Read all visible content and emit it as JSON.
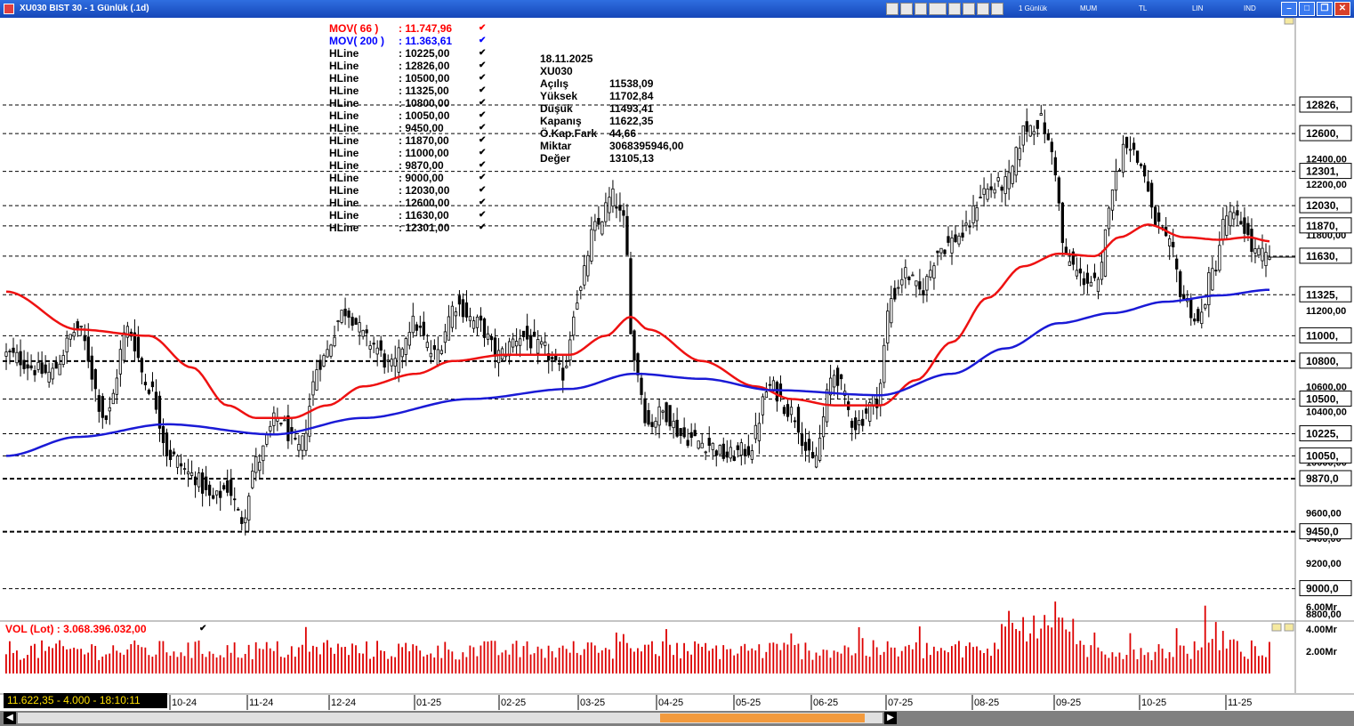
{
  "window": {
    "title": "XU030 BIST 30 - 1 Günlük (.1d)",
    "toolbar_labels": [
      "1 Günlük",
      "MUM",
      "TL",
      "LIN",
      "IND"
    ]
  },
  "legend": [
    {
      "name": "MOV( 66 )",
      "value": ": 11.747,96",
      "color": "#ff0000"
    },
    {
      "name": "MOV( 200 )",
      "value": ": 11.363,61",
      "color": "#0000ff"
    },
    {
      "name": "HLine",
      "value": ": 10225,00",
      "color": "#000000"
    },
    {
      "name": "HLine",
      "value": ": 12826,00",
      "color": "#000000"
    },
    {
      "name": "HLine",
      "value": ": 10500,00",
      "color": "#000000"
    },
    {
      "name": "HLine",
      "value": ": 11325,00",
      "color": "#000000"
    },
    {
      "name": "HLine",
      "value": ": 10800,00",
      "color": "#000000"
    },
    {
      "name": "HLine",
      "value": ": 10050,00",
      "color": "#000000"
    },
    {
      "name": "HLine",
      "value": ": 9450,00",
      "color": "#000000"
    },
    {
      "name": "HLine",
      "value": ": 11870,00",
      "color": "#000000"
    },
    {
      "name": "HLine",
      "value": ": 11000,00",
      "color": "#000000"
    },
    {
      "name": "HLine",
      "value": ": 9870,00",
      "color": "#000000"
    },
    {
      "name": "HLine",
      "value": ": 9000,00",
      "color": "#000000"
    },
    {
      "name": "HLine",
      "value": ": 12030,00",
      "color": "#000000"
    },
    {
      "name": "HLine",
      "value": ": 12600,00",
      "color": "#000000"
    },
    {
      "name": "HLine",
      "value": ": 11630,00",
      "color": "#000000"
    },
    {
      "name": "HLine",
      "value": ": 12301,00",
      "color": "#000000"
    }
  ],
  "check_mark": "✔",
  "info": [
    {
      "label": "18.11.2025",
      "value": ""
    },
    {
      "label": "XU030",
      "value": ""
    },
    {
      "label": "Açılış",
      "value": "11538,09"
    },
    {
      "label": "Yüksek",
      "value": "11702,84"
    },
    {
      "label": "Düşük",
      "value": "11493,41"
    },
    {
      "label": "Kapanış",
      "value": "11622,35"
    },
    {
      "label": "Ö.Kap.Fark",
      "value": "44,66"
    },
    {
      "label": "Miktar",
      "value": "3068395946,00"
    },
    {
      "label": "Değer",
      "value": "13105,13"
    }
  ],
  "volume": {
    "label": "VOL (Lot)   : 3.068.396.032,00",
    "axis_ticks": [
      {
        "label": "6.00Mr",
        "value": 6
      },
      {
        "label": "4.00Mr",
        "value": 4
      },
      {
        "label": "2.00Mr",
        "value": 2
      }
    ]
  },
  "status": "11.622,35 - 4.000 - 18:10:11",
  "colors": {
    "ma66": "#ee1111",
    "ma200": "#1a1ad6",
    "candle": "#000000",
    "volume": "#dd0000",
    "hline": "#000000"
  },
  "chart_data": {
    "type": "candlestick",
    "symbol": "XU030",
    "ylim": [
      8800,
      13050
    ],
    "y_ticks": [
      {
        "label": "12400,00",
        "value": 12400
      },
      {
        "label": "12200,00",
        "value": 12200
      },
      {
        "label": "11800,00",
        "value": 11800
      },
      {
        "label": "11200,00",
        "value": 11200
      },
      {
        "label": "10600,00",
        "value": 10600
      },
      {
        "label": "10400,00",
        "value": 10400
      },
      {
        "label": "10000,00",
        "value": 10000
      },
      {
        "label": "9600,00",
        "value": 9600
      },
      {
        "label": "9400,00",
        "value": 9400
      },
      {
        "label": "9200,00",
        "value": 9200
      },
      {
        "label": "8800,00",
        "value": 8800
      }
    ],
    "hlines": [
      {
        "label": "12826,",
        "value": 12826,
        "style": "dashed"
      },
      {
        "label": "12600,",
        "value": 12600,
        "style": "dashed"
      },
      {
        "label": "12301,",
        "value": 12301,
        "style": "dashed"
      },
      {
        "label": "12030,",
        "value": 12030,
        "style": "dashed"
      },
      {
        "label": "11870,",
        "value": 11870,
        "style": "dashed"
      },
      {
        "label": "11630,",
        "value": 11630,
        "style": "dashed"
      },
      {
        "label": "11325,",
        "value": 11325,
        "style": "dashed"
      },
      {
        "label": "11000,",
        "value": 11000,
        "style": "dashed"
      },
      {
        "label": "10800,",
        "value": 10800,
        "style": "bold"
      },
      {
        "label": "10500,",
        "value": 10500,
        "style": "dashed"
      },
      {
        "label": "10225,",
        "value": 10225,
        "style": "dashed"
      },
      {
        "label": "10050,",
        "value": 10050,
        "style": "dashed"
      },
      {
        "label": "9870,0",
        "value": 9870,
        "style": "bold"
      },
      {
        "label": "9450,0",
        "value": 9450,
        "style": "bold"
      },
      {
        "label": "9000,0",
        "value": 9000,
        "style": "dashed"
      }
    ],
    "x_labels": [
      "10-24",
      "11-24",
      "12-24",
      "01-25",
      "02-25",
      "03-25",
      "04-25",
      "05-25",
      "06-25",
      "07-25",
      "08-25",
      "09-25",
      "10-25",
      "11-25"
    ],
    "close_anchors": [
      {
        "bar": 0,
        "close": 10850
      },
      {
        "bar": 12,
        "close": 10700
      },
      {
        "bar": 20,
        "close": 11050
      },
      {
        "bar": 28,
        "close": 10350
      },
      {
        "bar": 34,
        "close": 11050
      },
      {
        "bar": 40,
        "close": 10600
      },
      {
        "bar": 46,
        "close": 10050
      },
      {
        "bar": 52,
        "close": 9900
      },
      {
        "bar": 58,
        "close": 9700
      },
      {
        "bar": 62,
        "close": 9800
      },
      {
        "bar": 66,
        "close": 9550
      },
      {
        "bar": 70,
        "close": 10000
      },
      {
        "bar": 76,
        "close": 10350
      },
      {
        "bar": 82,
        "close": 10100
      },
      {
        "bar": 88,
        "close": 10800
      },
      {
        "bar": 95,
        "close": 11200
      },
      {
        "bar": 102,
        "close": 10950
      },
      {
        "bar": 108,
        "close": 10750
      },
      {
        "bar": 114,
        "close": 11100
      },
      {
        "bar": 120,
        "close": 10850
      },
      {
        "bar": 126,
        "close": 11250
      },
      {
        "bar": 132,
        "close": 11100
      },
      {
        "bar": 138,
        "close": 10850
      },
      {
        "bar": 144,
        "close": 11000
      },
      {
        "bar": 150,
        "close": 10900
      },
      {
        "bar": 156,
        "close": 10700
      },
      {
        "bar": 160,
        "close": 11300
      },
      {
        "bar": 165,
        "close": 11850
      },
      {
        "bar": 170,
        "close": 12100
      },
      {
        "bar": 173,
        "close": 11900
      },
      {
        "bar": 176,
        "close": 10800
      },
      {
        "bar": 180,
        "close": 10300
      },
      {
        "bar": 184,
        "close": 10400
      },
      {
        "bar": 190,
        "close": 10200
      },
      {
        "bar": 196,
        "close": 10150
      },
      {
        "bar": 202,
        "close": 10050
      },
      {
        "bar": 208,
        "close": 10100
      },
      {
        "bar": 214,
        "close": 10600
      },
      {
        "bar": 220,
        "close": 10400
      },
      {
        "bar": 226,
        "close": 10000
      },
      {
        "bar": 232,
        "close": 10700
      },
      {
        "bar": 238,
        "close": 10300
      },
      {
        "bar": 244,
        "close": 10500
      },
      {
        "bar": 248,
        "close": 11300
      },
      {
        "bar": 252,
        "close": 11500
      },
      {
        "bar": 256,
        "close": 11350
      },
      {
        "bar": 262,
        "close": 11700
      },
      {
        "bar": 268,
        "close": 11800
      },
      {
        "bar": 274,
        "close": 12150
      },
      {
        "bar": 280,
        "close": 12200
      },
      {
        "bar": 286,
        "close": 12650
      },
      {
        "bar": 290,
        "close": 12700
      },
      {
        "bar": 293,
        "close": 12450
      },
      {
        "bar": 297,
        "close": 11600
      },
      {
        "bar": 302,
        "close": 11450
      },
      {
        "bar": 306,
        "close": 11400
      },
      {
        "bar": 310,
        "close": 12200
      },
      {
        "bar": 314,
        "close": 12550
      },
      {
        "bar": 318,
        "close": 12350
      },
      {
        "bar": 322,
        "close": 11900
      },
      {
        "bar": 326,
        "close": 11700
      },
      {
        "bar": 330,
        "close": 11300
      },
      {
        "bar": 334,
        "close": 11100
      },
      {
        "bar": 338,
        "close": 11500
      },
      {
        "bar": 342,
        "close": 11950
      },
      {
        "bar": 346,
        "close": 11900
      },
      {
        "bar": 350,
        "close": 11650
      },
      {
        "bar": 354,
        "close": 11622
      }
    ],
    "ma66_anchors": [
      {
        "bar": 0,
        "value": 11350
      },
      {
        "bar": 20,
        "value": 11050
      },
      {
        "bar": 40,
        "value": 11000
      },
      {
        "bar": 52,
        "value": 10750
      },
      {
        "bar": 62,
        "value": 10450
      },
      {
        "bar": 70,
        "value": 10350
      },
      {
        "bar": 80,
        "value": 10350
      },
      {
        "bar": 90,
        "value": 10450
      },
      {
        "bar": 100,
        "value": 10600
      },
      {
        "bar": 115,
        "value": 10700
      },
      {
        "bar": 125,
        "value": 10800
      },
      {
        "bar": 140,
        "value": 10850
      },
      {
        "bar": 158,
        "value": 10850
      },
      {
        "bar": 168,
        "value": 11000
      },
      {
        "bar": 175,
        "value": 11150
      },
      {
        "bar": 180,
        "value": 11050
      },
      {
        "bar": 195,
        "value": 10800
      },
      {
        "bar": 210,
        "value": 10600
      },
      {
        "bar": 220,
        "value": 10500
      },
      {
        "bar": 232,
        "value": 10450
      },
      {
        "bar": 245,
        "value": 10450
      },
      {
        "bar": 255,
        "value": 10650
      },
      {
        "bar": 265,
        "value": 10950
      },
      {
        "bar": 275,
        "value": 11300
      },
      {
        "bar": 285,
        "value": 11550
      },
      {
        "bar": 295,
        "value": 11650
      },
      {
        "bar": 305,
        "value": 11630
      },
      {
        "bar": 312,
        "value": 11780
      },
      {
        "bar": 320,
        "value": 11880
      },
      {
        "bar": 330,
        "value": 11780
      },
      {
        "bar": 340,
        "value": 11760
      },
      {
        "bar": 348,
        "value": 11780
      },
      {
        "bar": 354,
        "value": 11748
      }
    ],
    "ma200_anchors": [
      {
        "bar": 0,
        "value": 10050
      },
      {
        "bar": 20,
        "value": 10200
      },
      {
        "bar": 45,
        "value": 10300
      },
      {
        "bar": 75,
        "value": 10220
      },
      {
        "bar": 100,
        "value": 10350
      },
      {
        "bar": 130,
        "value": 10500
      },
      {
        "bar": 158,
        "value": 10580
      },
      {
        "bar": 176,
        "value": 10700
      },
      {
        "bar": 195,
        "value": 10660
      },
      {
        "bar": 215,
        "value": 10570
      },
      {
        "bar": 245,
        "value": 10530
      },
      {
        "bar": 265,
        "value": 10700
      },
      {
        "bar": 280,
        "value": 10900
      },
      {
        "bar": 295,
        "value": 11100
      },
      {
        "bar": 310,
        "value": 11180
      },
      {
        "bar": 325,
        "value": 11270
      },
      {
        "bar": 340,
        "value": 11320
      },
      {
        "bar": 354,
        "value": 11364
      }
    ]
  }
}
